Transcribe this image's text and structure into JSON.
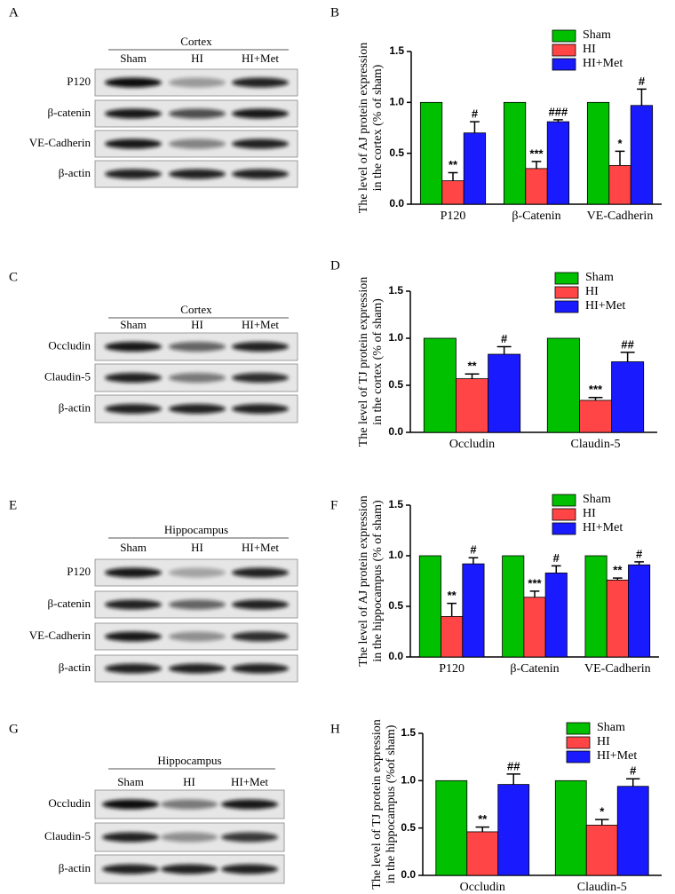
{
  "panel_labels": [
    "A",
    "B",
    "C",
    "D",
    "E",
    "F",
    "G",
    "H"
  ],
  "blots": [
    {
      "region": "Cortex",
      "lanes": [
        "Sham",
        "HI",
        "HI+Met"
      ],
      "rows": [
        "P120",
        "β-catenin",
        "VE-Cadherin",
        "β-actin"
      ]
    },
    {
      "region": "Cortex",
      "lanes": [
        "Sham",
        "HI",
        "HI+Met"
      ],
      "rows": [
        "Occludin",
        "Claudin-5",
        "β-actin"
      ]
    },
    {
      "region": "Hippocampus",
      "lanes": [
        "Sham",
        "HI",
        "HI+Met"
      ],
      "rows": [
        "P120",
        "β-catenin",
        "VE-Cadherin",
        "β-actin"
      ]
    },
    {
      "region": "Hippocampus",
      "lanes": [
        "Sham",
        "HI",
        "HI+Met"
      ],
      "rows": [
        "Occludin",
        "Claudin-5",
        "β-actin"
      ]
    }
  ],
  "chart_data": [
    {
      "type": "bar",
      "y_label": [
        "The level of  AJ protein expression",
        "in the cortex (% of sham)"
      ],
      "categories": [
        "P120",
        "β-Catenin",
        "VE-Cadherin"
      ],
      "series": [
        {
          "name": "Sham",
          "color": "#00c000",
          "values": [
            1,
            1,
            1
          ]
        },
        {
          "name": "HI",
          "color": "#ff4545",
          "values": [
            0.23,
            0.35,
            0.38
          ],
          "errors": [
            0.08,
            0.07,
            0.14
          ],
          "markers": [
            "**",
            "***",
            "*"
          ]
        },
        {
          "name": "HI+Met",
          "color": "#1a1aff",
          "values": [
            0.7,
            0.81,
            0.97
          ],
          "errors": [
            0.11,
            0.02,
            0.16
          ],
          "markers": [
            "#",
            "###",
            "#"
          ]
        }
      ],
      "ylim": [
        0,
        1.5
      ],
      "yticks": [
        {
          "value": 0,
          "label": "0.0"
        },
        {
          "value": 0.5,
          "label": "0.5"
        },
        {
          "value": 1,
          "label": "1.0"
        },
        {
          "value": 1.5,
          "label": "1.5"
        }
      ]
    },
    {
      "type": "bar",
      "y_label": [
        "The level of TJ protein expression",
        "in the cortex (% of sham)"
      ],
      "categories": [
        "Occludin",
        "Claudin-5"
      ],
      "series": [
        {
          "name": "Sham",
          "color": "#00c000",
          "values": [
            1,
            1
          ]
        },
        {
          "name": "HI",
          "color": "#ff4545",
          "values": [
            0.57,
            0.34
          ],
          "errors": [
            0.05,
            0.03
          ],
          "markers": [
            "**",
            "***"
          ]
        },
        {
          "name": "HI+Met",
          "color": "#1a1aff",
          "values": [
            0.83,
            0.75
          ],
          "errors": [
            0.08,
            0.1
          ],
          "markers": [
            "#",
            "##"
          ]
        }
      ],
      "ylim": [
        0,
        1.5
      ],
      "yticks": [
        {
          "value": 0,
          "label": "0.0"
        },
        {
          "value": 0.5,
          "label": "0.5"
        },
        {
          "value": 1,
          "label": "1.0"
        },
        {
          "value": 1.5,
          "label": "1.5"
        }
      ]
    },
    {
      "type": "bar",
      "y_label": [
        "The level of AJ protein expression",
        "in the hippocampus (% of sham)"
      ],
      "categories": [
        "P120",
        "β-Catenin",
        "VE-Cadherin"
      ],
      "series": [
        {
          "name": "Sham",
          "color": "#00c000",
          "values": [
            1,
            1,
            1
          ]
        },
        {
          "name": "HI",
          "color": "#ff4545",
          "values": [
            0.4,
            0.59,
            0.76
          ],
          "errors": [
            0.13,
            0.06,
            0.02
          ],
          "markers": [
            "**",
            "***",
            "**"
          ]
        },
        {
          "name": "HI+Met",
          "color": "#1a1aff",
          "values": [
            0.92,
            0.83,
            0.91
          ],
          "errors": [
            0.06,
            0.07,
            0.03
          ],
          "markers": [
            "#",
            "#",
            "#"
          ]
        }
      ],
      "ylim": [
        0,
        1.5
      ],
      "yticks": [
        {
          "value": 0,
          "label": "0.0"
        },
        {
          "value": 0.5,
          "label": "0.5"
        },
        {
          "value": 1,
          "label": "1.0"
        },
        {
          "value": 1.5,
          "label": "1.5"
        }
      ]
    },
    {
      "type": "bar",
      "y_label": [
        "The level of TJ protein expression",
        "in the hippocampus (%of sham)"
      ],
      "categories": [
        "Occludin",
        "Claudin-5"
      ],
      "series": [
        {
          "name": "Sham",
          "color": "#00c000",
          "values": [
            1,
            1
          ]
        },
        {
          "name": "HI",
          "color": "#ff4545",
          "values": [
            0.46,
            0.53
          ],
          "errors": [
            0.05,
            0.06
          ],
          "markers": [
            "**",
            "*"
          ]
        },
        {
          "name": "HI+Met",
          "color": "#1a1aff",
          "values": [
            0.96,
            0.94
          ],
          "errors": [
            0.11,
            0.08
          ],
          "markers": [
            "##",
            "#"
          ]
        }
      ],
      "ylim": [
        0,
        1.5
      ],
      "yticks": [
        {
          "value": 0,
          "label": "0.0"
        },
        {
          "value": 0.5,
          "label": "0.5"
        },
        {
          "value": 1,
          "label": "1.0"
        },
        {
          "value": 1.5,
          "label": "1.5"
        }
      ]
    }
  ]
}
